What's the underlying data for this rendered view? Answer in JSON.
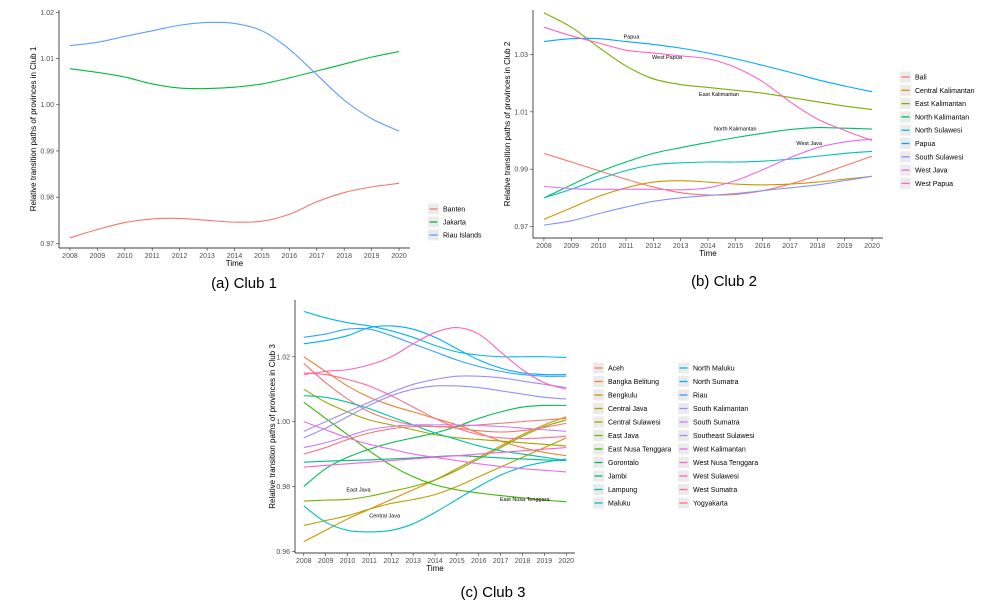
{
  "chart_data": [
    {
      "type": "line",
      "caption": "(a)  Club 1",
      "xlabel": "Time",
      "ylabel": "Relative transition paths of provinces in Club 1",
      "x": [
        2008,
        2009,
        2010,
        2011,
        2012,
        2013,
        2014,
        2015,
        2016,
        2017,
        2018,
        2019,
        2020
      ],
      "xlim": [
        2007.6,
        2020.4
      ],
      "ylim": [
        0.969,
        1.0205
      ],
      "yticks": [
        0.97,
        0.98,
        0.99,
        1.0,
        1.01,
        1.02
      ],
      "ytick_labels": [
        "0.97",
        "0.98",
        "0.99",
        "1.00",
        "1.01",
        "1.02"
      ],
      "grid": false,
      "legend": "right",
      "series": [
        {
          "name": "Banten",
          "color": "#F8766D",
          "values": [
            0.9712,
            0.973,
            0.9745,
            0.9753,
            0.9754,
            0.975,
            0.9746,
            0.9748,
            0.9763,
            0.979,
            0.981,
            0.9822,
            0.983
          ]
        },
        {
          "name": "Jakarta",
          "color": "#00BA38",
          "values": [
            1.0078,
            1.007,
            1.006,
            1.0045,
            1.0036,
            1.0035,
            1.0038,
            1.0045,
            1.0058,
            1.0073,
            1.0088,
            1.0103,
            1.0115
          ]
        },
        {
          "name": "Riau Islands",
          "color": "#619CFF",
          "values": [
            1.0128,
            1.0135,
            1.0148,
            1.016,
            1.0172,
            1.0178,
            1.0176,
            1.016,
            1.012,
            1.0065,
            1.001,
            0.997,
            0.9943
          ]
        }
      ]
    },
    {
      "type": "line",
      "caption": "(b)  Club 2",
      "xlabel": "Time",
      "ylabel": "Relative transition paths of provinces in Club 2",
      "x": [
        2008,
        2009,
        2010,
        2011,
        2012,
        2013,
        2014,
        2015,
        2016,
        2017,
        2018,
        2019,
        2020
      ],
      "xlim": [
        2007.6,
        2020.4
      ],
      "ylim": [
        0.966,
        1.0455
      ],
      "yticks": [
        0.97,
        0.99,
        1.01,
        1.03
      ],
      "ytick_labels": [
        "0.97",
        "0.99",
        "1.01",
        "1.03"
      ],
      "grid": false,
      "legend": "right",
      "annotations": [
        {
          "text": "Papua",
          "x": 2011.2,
          "y": 1.0355
        },
        {
          "text": "West Papua",
          "x": 2012.5,
          "y": 1.0285
        },
        {
          "text": "East Kalimantan",
          "x": 2014.4,
          "y": 1.0155
        },
        {
          "text": "North Kalimantan",
          "x": 2015.0,
          "y": 1.0035
        },
        {
          "text": "West Java",
          "x": 2017.7,
          "y": 0.9985
        }
      ],
      "series": [
        {
          "name": "Bali",
          "color": "#F8766D",
          "values": [
            0.9955,
            0.9925,
            0.9895,
            0.9865,
            0.9838,
            0.9818,
            0.981,
            0.9812,
            0.9825,
            0.9848,
            0.9878,
            0.9912,
            0.9945
          ]
        },
        {
          "name": "Central Kalimantan",
          "color": "#CD9600",
          "values": [
            0.9725,
            0.9765,
            0.9805,
            0.9835,
            0.9855,
            0.986,
            0.9855,
            0.9848,
            0.9845,
            0.9848,
            0.9855,
            0.9865,
            0.9875
          ]
        },
        {
          "name": "East Kalimantan",
          "color": "#7CAE00",
          "values": [
            1.0445,
            1.0395,
            1.0325,
            1.026,
            1.0215,
            1.0195,
            1.0185,
            1.0175,
            1.0165,
            1.015,
            1.0135,
            1.012,
            1.0108
          ]
        },
        {
          "name": "North Kalimantan",
          "color": "#00BE67",
          "values": [
            0.98,
            0.9845,
            0.989,
            0.9925,
            0.9955,
            0.9975,
            0.9993,
            1.001,
            1.0025,
            1.0038,
            1.0045,
            1.0043,
            1.004
          ]
        },
        {
          "name": "North Sulawesi",
          "color": "#00BFC4",
          "values": [
            0.98,
            0.983,
            0.9865,
            0.9895,
            0.9915,
            0.9922,
            0.9925,
            0.9925,
            0.9928,
            0.9935,
            0.9945,
            0.9955,
            0.9962
          ]
        },
        {
          "name": "Papua",
          "color": "#00A9FF",
          "values": [
            1.0345,
            1.0355,
            1.0355,
            1.0345,
            1.0335,
            1.0322,
            1.0305,
            1.0285,
            1.0262,
            1.0238,
            1.0212,
            1.019,
            1.017
          ]
        },
        {
          "name": "South Sulawesi",
          "color": "#8494FF",
          "values": [
            0.9705,
            0.972,
            0.9745,
            0.9768,
            0.9788,
            0.98,
            0.9808,
            0.9815,
            0.9825,
            0.9835,
            0.9845,
            0.986,
            0.9875
          ]
        },
        {
          "name": "West Java",
          "color": "#E76BF3",
          "values": [
            0.984,
            0.9832,
            0.983,
            0.983,
            0.983,
            0.9828,
            0.9835,
            0.986,
            0.9898,
            0.994,
            0.9975,
            0.9995,
            1.0005
          ]
        },
        {
          "name": "West Papua",
          "color": "#FF62BC",
          "values": [
            1.0395,
            1.0365,
            1.034,
            1.0315,
            1.0305,
            1.0295,
            1.0285,
            1.0255,
            1.0205,
            1.0135,
            1.0075,
            1.0035,
            1.0
          ]
        }
      ]
    },
    {
      "type": "line",
      "caption": "(c)  Club 3",
      "xlabel": "Time",
      "ylabel": "Relative transition paths of provinces in Club 3",
      "x": [
        2008,
        2009,
        2010,
        2011,
        2012,
        2013,
        2014,
        2015,
        2016,
        2017,
        2018,
        2019,
        2020
      ],
      "xlim": [
        2007.6,
        2020.4
      ],
      "ylim": [
        0.9595,
        1.0375
      ],
      "yticks": [
        0.96,
        0.98,
        1.0,
        1.02
      ],
      "ytick_labels": [
        "0.96",
        "0.98",
        "1.00",
        "1.02"
      ],
      "grid": false,
      "legend": "right",
      "annotations": [
        {
          "text": "East Java",
          "x": 2010.5,
          "y": 0.9785
        },
        {
          "text": "Central Java",
          "x": 2011.7,
          "y": 0.9705
        },
        {
          "text": "East Nusa Tenggara",
          "x": 2018.1,
          "y": 0.9755
        }
      ],
      "series": [
        {
          "name": "Aceh",
          "color": "#F8766D",
          "values": [
            1.018,
            1.012,
            1.007,
            1.003,
            1.0005,
            0.999,
            0.9985,
            0.9985,
            0.999,
            0.9995,
            1.0,
            1.0005,
            1.001
          ]
        },
        {
          "name": "Bangka Belitung",
          "color": "#EA8331",
          "values": [
            1.02,
            1.0155,
            1.011,
            1.0075,
            1.005,
            1.003,
            1.001,
            0.999,
            0.9965,
            0.994,
            0.992,
            0.9905,
            0.9895
          ]
        },
        {
          "name": "Bengkulu",
          "color": "#D89000",
          "values": [
            0.963,
            0.9665,
            0.97,
            0.973,
            0.976,
            0.979,
            0.982,
            0.9855,
            0.989,
            0.9925,
            0.996,
            0.999,
            1.0015
          ]
        },
        {
          "name": "Central Java",
          "color": "#C09B00",
          "values": [
            0.968,
            0.9695,
            0.971,
            0.973,
            0.9748,
            0.976,
            0.9775,
            0.98,
            0.983,
            0.986,
            0.989,
            0.992,
            0.995
          ]
        },
        {
          "name": "Central Sulawesi",
          "color": "#A3A500",
          "values": [
            1.01,
            1.006,
            1.003,
            1.0005,
            0.999,
            0.9975,
            0.996,
            0.995,
            0.9945,
            0.994,
            0.9935,
            0.993,
            0.9925
          ]
        },
        {
          "name": "East Java",
          "color": "#7CAE00",
          "values": [
            0.9755,
            0.9758,
            0.976,
            0.977,
            0.9785,
            0.98,
            0.982,
            0.985,
            0.9885,
            0.992,
            0.9955,
            0.9985,
            1.0005
          ]
        },
        {
          "name": "East Nusa Tenggara",
          "color": "#39B600",
          "values": [
            1.006,
            1.001,
            0.996,
            0.991,
            0.9865,
            0.983,
            0.9805,
            0.979,
            0.978,
            0.9772,
            0.9765,
            0.9758,
            0.9753
          ]
        },
        {
          "name": "Gorontalo",
          "color": "#00BB4E",
          "values": [
            0.98,
            0.9855,
            0.989,
            0.9915,
            0.9935,
            0.995,
            0.9965,
            0.9985,
            1.001,
            1.003,
            1.0045,
            1.005,
            1.005
          ]
        },
        {
          "name": "Jambi",
          "color": "#00BF7D",
          "values": [
            0.9875,
            0.9878,
            0.988,
            0.9882,
            0.9885,
            0.9888,
            0.9892,
            0.9895,
            0.9892,
            0.9888,
            0.9885,
            0.9882,
            0.988
          ]
        },
        {
          "name": "Lampung",
          "color": "#00C1A3",
          "values": [
            1.008,
            1.0075,
            1.006,
            1.004,
            1.0015,
            0.999,
            0.9965,
            0.9945,
            0.9925,
            0.991,
            0.99,
            0.989,
            0.988
          ]
        },
        {
          "name": "Maluku",
          "color": "#00BFC4",
          "values": [
            0.974,
            0.969,
            0.9665,
            0.966,
            0.9665,
            0.9685,
            0.972,
            0.976,
            0.98,
            0.9835,
            0.986,
            0.9875,
            0.9885
          ]
        },
        {
          "name": "North Maluku",
          "color": "#00BAE0",
          "values": [
            1.034,
            1.032,
            1.0305,
            1.0295,
            1.028,
            1.026,
            1.0235,
            1.0215,
            1.0205,
            1.02,
            1.02,
            1.02,
            1.0198
          ]
        },
        {
          "name": "North Sumatra",
          "color": "#00B0F6",
          "values": [
            1.024,
            1.025,
            1.0265,
            1.029,
            1.0295,
            1.0285,
            1.026,
            1.0225,
            1.019,
            1.0165,
            1.015,
            1.0145,
            1.0145
          ]
        },
        {
          "name": "Riau",
          "color": "#35A2FF",
          "values": [
            1.026,
            1.027,
            1.0285,
            1.0285,
            1.0265,
            1.024,
            1.0215,
            1.019,
            1.017,
            1.0155,
            1.0145,
            1.014,
            1.014
          ]
        },
        {
          "name": "South Kalimantan",
          "color": "#9590FF",
          "values": [
            0.995,
            0.998,
            1.0015,
            1.005,
            1.008,
            1.01,
            1.011,
            1.011,
            1.0105,
            1.0095,
            1.0085,
            1.0075,
            1.007
          ]
        },
        {
          "name": "South Sumatra",
          "color": "#C77CFF",
          "values": [
            0.992,
            0.9935,
            0.9955,
            0.9975,
            0.9985,
            0.999,
            0.999,
            0.999,
            0.9988,
            0.9985,
            0.998,
            0.9975,
            0.997
          ]
        },
        {
          "name": "Southeast Sulawesi",
          "color": "#9F8CFF",
          "values": [
            0.997,
            1.0,
            1.003,
            1.006,
            1.009,
            1.0115,
            1.013,
            1.014,
            1.014,
            1.0135,
            1.0125,
            1.0115,
            1.0105
          ]
        },
        {
          "name": "West Kalimantan",
          "color": "#E76BF3",
          "values": [
            1.0,
            0.9975,
            0.995,
            0.993,
            0.9915,
            0.99,
            0.989,
            0.988,
            0.987,
            0.9862,
            0.9855,
            0.985,
            0.9845
          ]
        },
        {
          "name": "West Nusa Tenggara",
          "color": "#FA62DB",
          "values": [
            0.986,
            0.9865,
            0.987,
            0.9875,
            0.988,
            0.9885,
            0.989,
            0.9895,
            0.99,
            0.9905,
            0.991,
            0.9915,
            0.992
          ]
        },
        {
          "name": "West Sulawesi",
          "color": "#FF62BC",
          "values": [
            1.0145,
            1.0155,
            1.016,
            1.0175,
            1.02,
            1.024,
            1.0275,
            1.029,
            1.027,
            1.0215,
            1.016,
            1.012,
            1.01
          ]
        },
        {
          "name": "West Sumatra",
          "color": "#FF6C91",
          "values": [
            1.015,
            1.0145,
            1.013,
            1.011,
            1.008,
            1.0045,
            1.001,
            0.998,
            0.996,
            0.995,
            0.9948,
            0.995,
            0.9955
          ]
        },
        {
          "name": "Yogyakarta",
          "color": "#F8766D",
          "values": [
            0.99,
            0.992,
            0.9945,
            0.9965,
            0.9978,
            0.9985,
            0.9985,
            0.998,
            0.9972,
            0.9968,
            0.9972,
            0.9982,
            0.9995
          ]
        }
      ]
    }
  ]
}
